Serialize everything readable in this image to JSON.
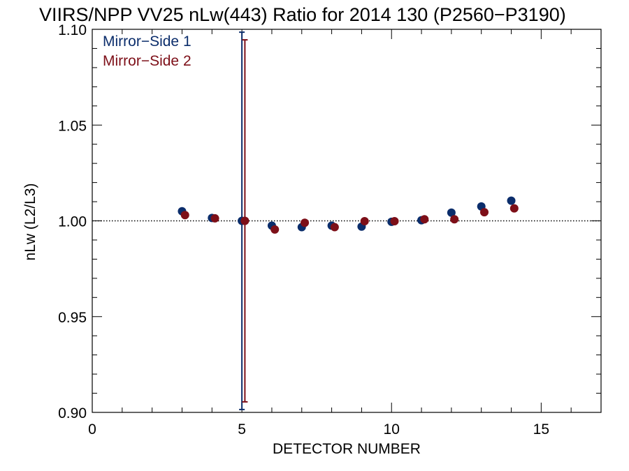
{
  "chart_data": {
    "type": "scatter",
    "title": "VIIRS/NPP VV25 nLw(443) Ratio for 2014 130 (P2560−P3190)",
    "xlabel": "DETECTOR NUMBER",
    "ylabel": "nLw (L2/L3)",
    "xlim": [
      0,
      17
    ],
    "ylim": [
      0.9,
      1.1
    ],
    "x_ticks": [
      0,
      5,
      10,
      15
    ],
    "x_tick_labels": [
      "0",
      "5",
      "10",
      "15"
    ],
    "y_ticks": [
      0.9,
      0.95,
      1.0,
      1.05,
      1.1
    ],
    "y_tick_labels": [
      "0.90",
      "0.95",
      "1.00",
      "1.05",
      "1.10"
    ],
    "reference_line": 1.0,
    "legend_position": "top-left",
    "series": [
      {
        "name": "Mirror−Side 1",
        "color": "#0b2d6b",
        "x": [
          3,
          4,
          5,
          6,
          7,
          8,
          9,
          10,
          11,
          12,
          13,
          14
        ],
        "y": [
          1.005,
          1.0015,
          1.0,
          0.9975,
          0.9967,
          0.9975,
          0.997,
          0.9995,
          1.0003,
          1.0043,
          1.0075,
          1.0105
        ],
        "errorbar": {
          "x": 5,
          "low": 0.9015,
          "high": 1.0985
        }
      },
      {
        "name": "Mirror−Side 2",
        "color": "#7d0f18",
        "x_offset": 0.1,
        "x": [
          3,
          4,
          5,
          6,
          7,
          8,
          9,
          10,
          11,
          12,
          13,
          14
        ],
        "y": [
          1.003,
          1.0013,
          1.0,
          0.9955,
          0.999,
          0.9967,
          0.9998,
          0.9998,
          1.0008,
          1.0008,
          1.0045,
          1.0065
        ],
        "errorbar": {
          "x": 5,
          "low": 0.9055,
          "high": 1.0945
        }
      }
    ]
  }
}
